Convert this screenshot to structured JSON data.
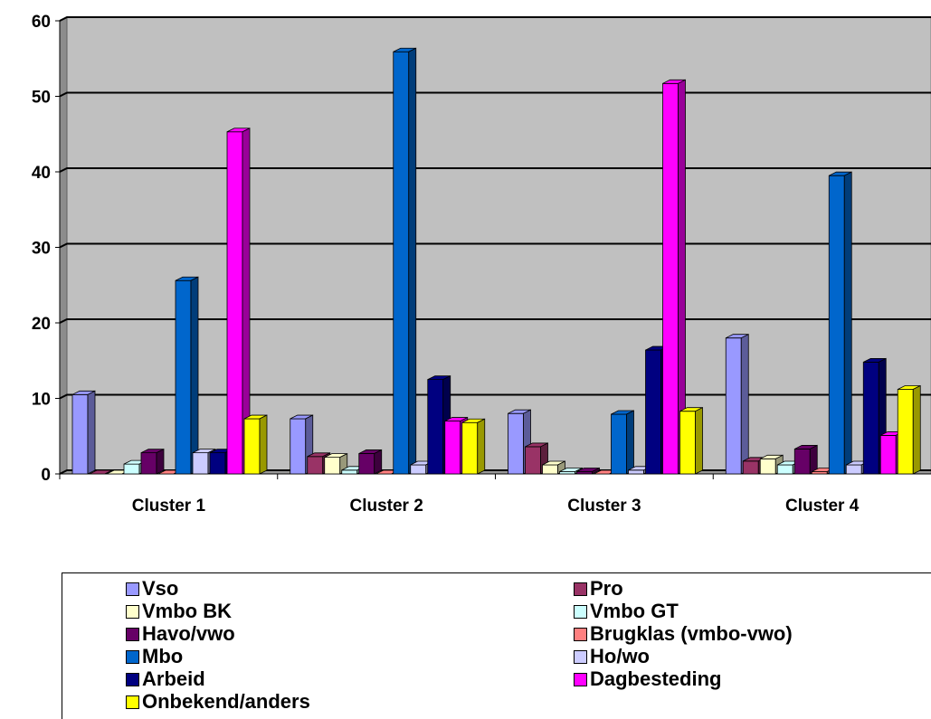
{
  "chart_data": {
    "type": "bar",
    "title": "",
    "xlabel": "",
    "ylabel": "",
    "ylim": [
      0,
      60
    ],
    "yticks": [
      0,
      10,
      20,
      30,
      40,
      50,
      60
    ],
    "grid": true,
    "style": "3d-columns",
    "plot_background": "#c0c0c0",
    "legend_position": "bottom",
    "categories": [
      "Cluster 1",
      "Cluster 2",
      "Cluster 3",
      "Cluster 4"
    ],
    "series": [
      {
        "name": "Vso",
        "color": "#9999ff",
        "values": [
          10.5,
          7.3,
          8.0,
          18.0
        ]
      },
      {
        "name": "Pro",
        "color": "#993366",
        "values": [
          0.0,
          2.3,
          3.6,
          1.7
        ]
      },
      {
        "name": "Vmbo BK",
        "color": "#ffffcc",
        "values": [
          0.0,
          2.2,
          1.2,
          2.0
        ]
      },
      {
        "name": "Vmbo GT",
        "color": "#ccffff",
        "values": [
          1.3,
          0.5,
          0.3,
          1.2
        ]
      },
      {
        "name": "Havo/vwo",
        "color": "#660066",
        "values": [
          2.8,
          2.7,
          0.3,
          3.3
        ]
      },
      {
        "name": "Brugklas (vmbo-vwo)",
        "color": "#ff8080",
        "values": [
          0.0,
          0.0,
          0.0,
          0.3
        ]
      },
      {
        "name": "Mbo",
        "color": "#0066cc",
        "values": [
          25.6,
          55.9,
          7.9,
          39.5
        ]
      },
      {
        "name": "Ho/wo",
        "color": "#ccccff",
        "values": [
          2.8,
          1.2,
          0.5,
          1.2
        ]
      },
      {
        "name": "Arbeid",
        "color": "#000080",
        "values": [
          2.8,
          12.5,
          16.4,
          14.8
        ]
      },
      {
        "name": "Dagbesteding",
        "color": "#ff00ff",
        "values": [
          45.3,
          7.0,
          51.7,
          5.1
        ]
      },
      {
        "name": "Onbekend/anders",
        "color": "#ffff00",
        "values": [
          7.3,
          6.8,
          8.3,
          11.2
        ]
      }
    ]
  }
}
